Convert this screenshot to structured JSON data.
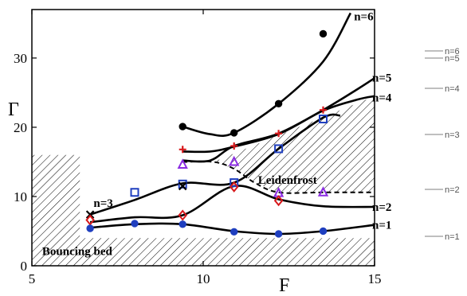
{
  "chart_data": {
    "type": "line",
    "xlabel": "F",
    "ylabel": "Γ",
    "xlim": [
      5,
      15
    ],
    "ylim": [
      0,
      37
    ],
    "xticks": [
      5,
      10,
      15
    ],
    "yticks": [
      0,
      10,
      20,
      30
    ],
    "grid": false,
    "series": [
      {
        "name": "n=1",
        "x": [
          6.7,
          8,
          9.4,
          10.9,
          12.2,
          13.5,
          15
        ],
        "y": [
          5.5,
          6,
          6,
          5,
          4.6,
          5,
          5.9
        ]
      },
      {
        "name": "n=2",
        "x": [
          6.7,
          8,
          9.4,
          10.9,
          12.2,
          13.5,
          15
        ],
        "y": [
          6.3,
          7,
          7.3,
          11.5,
          9.6,
          8.6,
          8.5
        ]
      },
      {
        "name": "n=3",
        "x": [
          6.7,
          8,
          9.4,
          10.9,
          12.2,
          13.5,
          14
        ],
        "y": [
          7.4,
          9.5,
          11.9,
          12,
          16.9,
          21.4,
          21.7
        ]
      },
      {
        "name": "n=4",
        "x": [
          9.4,
          10.2,
          10.9,
          12.2,
          13.5,
          14.5,
          15
        ],
        "y": [
          16.5,
          16.5,
          17.2,
          19,
          22.4,
          24,
          24.5
        ]
      },
      {
        "name": "n=5",
        "x": [
          9.4,
          10.2,
          10.9,
          12.2,
          13.5,
          14.5,
          15
        ],
        "y": [
          15.2,
          15.2,
          17.3,
          19.1,
          22.5,
          25.5,
          27.1
        ]
      },
      {
        "name": "n=6",
        "x": [
          9.4,
          10.2,
          10.9,
          12.2,
          13.5,
          14.3
        ],
        "y": [
          20.1,
          19,
          19.2,
          23.4,
          29.5,
          36.5
        ]
      }
    ],
    "markers": [
      {
        "symbol": "x",
        "x": 6.7,
        "y": 7.4,
        "color": "#000000"
      },
      {
        "symbol": "diamond",
        "x": 6.7,
        "y": 6.6,
        "color": "#d7191c"
      },
      {
        "symbol": "circle",
        "x": 6.7,
        "y": 5.4,
        "color": "#1f3fbf"
      },
      {
        "symbol": "square",
        "x": 8.0,
        "y": 10.6,
        "color": "#1f3fbf"
      },
      {
        "symbol": "circle",
        "x": 8.0,
        "y": 6.1,
        "color": "#1f3fbf"
      },
      {
        "symbol": "circle",
        "x": 9.4,
        "y": 20.1,
        "color": "#000000"
      },
      {
        "symbol": "plus",
        "x": 9.4,
        "y": 16.8,
        "color": "#d7191c"
      },
      {
        "symbol": "triangle",
        "x": 9.4,
        "y": 14.6,
        "color": "#8a2be2"
      },
      {
        "symbol": "square",
        "x": 9.4,
        "y": 11.8,
        "color": "#1f3fbf"
      },
      {
        "symbol": "x",
        "x": 9.4,
        "y": 11.5,
        "color": "#000000"
      },
      {
        "symbol": "diamond",
        "x": 9.4,
        "y": 7.3,
        "color": "#d7191c"
      },
      {
        "symbol": "circle",
        "x": 9.4,
        "y": 6.0,
        "color": "#1f3fbf"
      },
      {
        "symbol": "circle",
        "x": 10.9,
        "y": 19.2,
        "color": "#000000"
      },
      {
        "symbol": "plus",
        "x": 10.9,
        "y": 17.3,
        "color": "#d7191c"
      },
      {
        "symbol": "triangle",
        "x": 10.9,
        "y": 15.0,
        "color": "#8a2be2"
      },
      {
        "symbol": "square",
        "x": 10.9,
        "y": 12.0,
        "color": "#1f3fbf"
      },
      {
        "symbol": "diamond",
        "x": 10.9,
        "y": 11.4,
        "color": "#d7191c"
      },
      {
        "symbol": "circle",
        "x": 10.9,
        "y": 4.9,
        "color": "#1f3fbf"
      },
      {
        "symbol": "circle",
        "x": 12.2,
        "y": 23.4,
        "color": "#000000"
      },
      {
        "symbol": "plus",
        "x": 12.2,
        "y": 19.1,
        "color": "#d7191c"
      },
      {
        "symbol": "square",
        "x": 12.2,
        "y": 16.9,
        "color": "#1f3fbf"
      },
      {
        "symbol": "triangle",
        "x": 12.2,
        "y": 10.5,
        "color": "#8a2be2"
      },
      {
        "symbol": "diamond",
        "x": 12.2,
        "y": 9.4,
        "color": "#d7191c"
      },
      {
        "symbol": "circle",
        "x": 12.2,
        "y": 4.6,
        "color": "#1f3fbf"
      },
      {
        "symbol": "circle",
        "x": 13.5,
        "y": 33.5,
        "color": "#000000"
      },
      {
        "symbol": "plus",
        "x": 13.5,
        "y": 22.5,
        "color": "#d7191c"
      },
      {
        "symbol": "square",
        "x": 13.5,
        "y": 21.2,
        "color": "#1f3fbf"
      },
      {
        "symbol": "triangle",
        "x": 13.5,
        "y": 10.6,
        "color": "#8a2be2"
      },
      {
        "symbol": "circle",
        "x": 13.5,
        "y": 5.0,
        "color": "#1f3fbf"
      }
    ],
    "dashed_boundary": {
      "x": [
        9.4,
        10.3,
        10.9,
        11.5,
        12.2,
        13.5,
        15
      ],
      "y": [
        15,
        15,
        14,
        12,
        10.6,
        10.6,
        10.6
      ]
    },
    "hatched_regions": [
      {
        "name": "Bouncing bed",
        "x": [
          5,
          6.4,
          6.4,
          15,
          15,
          5
        ],
        "y": [
          16,
          16,
          4,
          4,
          0,
          0
        ]
      },
      {
        "name": "Leidenfrost",
        "x": [
          10.3,
          10.9,
          11.5,
          12.2,
          13.5,
          14.5,
          15,
          15
        ],
        "y": [
          15,
          14,
          12,
          10.6,
          10.6,
          10.6,
          10.6,
          24.5
        ]
      }
    ],
    "annotations": [
      {
        "text": "n=6",
        "x": 14.4,
        "y": 36
      },
      {
        "text": "n=5",
        "x": 15,
        "y": 27.2
      },
      {
        "text": "n=4",
        "x": 15,
        "y": 24.3
      },
      {
        "text": "n=3",
        "x": 6.8,
        "y": 9.1
      },
      {
        "text": "n=2",
        "x": 15,
        "y": 8.5
      },
      {
        "text": "n=1",
        "x": 15,
        "y": 5.9
      },
      {
        "text": "Leidenfrost",
        "x": 11.6,
        "y": 12.4
      },
      {
        "text": "Bouncing bed",
        "x": 5.3,
        "y": 2.1
      }
    ],
    "side_legend": [
      {
        "text": "n=6"
      },
      {
        "text": "n=5"
      },
      {
        "text": "n=4"
      },
      {
        "text": "n=3"
      },
      {
        "text": "n=2"
      },
      {
        "text": "n=1"
      }
    ],
    "colors": {
      "blue": "#1f3fbf",
      "red": "#d7191c",
      "purple": "#8a2be2",
      "black": "#000000",
      "side_legend": "#999999"
    }
  }
}
